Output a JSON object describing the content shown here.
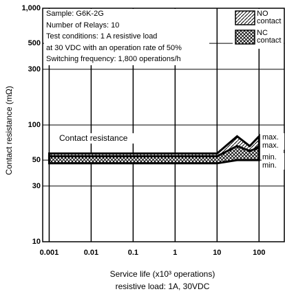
{
  "chart_data": {
    "type": "band",
    "y_label": "Contact resistance (mΩ)",
    "x_label": "Service life (x10³ operations)",
    "x_sublabel": "resistive load: 1A, 30VDC",
    "annotations": [
      "Sample: G6K-2G",
      "Number of Relays: 10",
      "Test conditions: 1 A resistive load",
      "at 30 VDC with an operation rate of 50%",
      "Switching frequency: 1,800 operations/h"
    ],
    "band_label": "Contact resistance",
    "limit_labels": [
      "max.",
      "max.",
      "min.",
      "min."
    ],
    "x": [
      0.001,
      0.01,
      0.1,
      1,
      10,
      30,
      60,
      100
    ],
    "series": [
      {
        "name": "NO contact",
        "color": "#000",
        "hatch": "diagonal",
        "max": [
          57,
          57,
          57,
          57,
          57,
          80,
          66,
          80
        ],
        "min": [
          52,
          52,
          52,
          52,
          52,
          62,
          58,
          66
        ]
      },
      {
        "name": "NC contact",
        "color": "#000",
        "hatch": "cross",
        "max": [
          54,
          54,
          54,
          54,
          54,
          66,
          60,
          64
        ],
        "min": [
          47,
          47,
          47,
          47,
          47,
          50,
          50,
          50
        ]
      }
    ],
    "xscale": "log",
    "yscale": "log",
    "xlim": [
      0.0007,
      400
    ],
    "ylim": [
      10,
      1000
    ],
    "xticks": [
      0.001,
      0.01,
      0.1,
      1,
      10,
      100
    ],
    "yticks": [
      10,
      30,
      50,
      100,
      300,
      500,
      {
        "value": 1000,
        "label": "1,000"
      }
    ],
    "grid": true
  }
}
